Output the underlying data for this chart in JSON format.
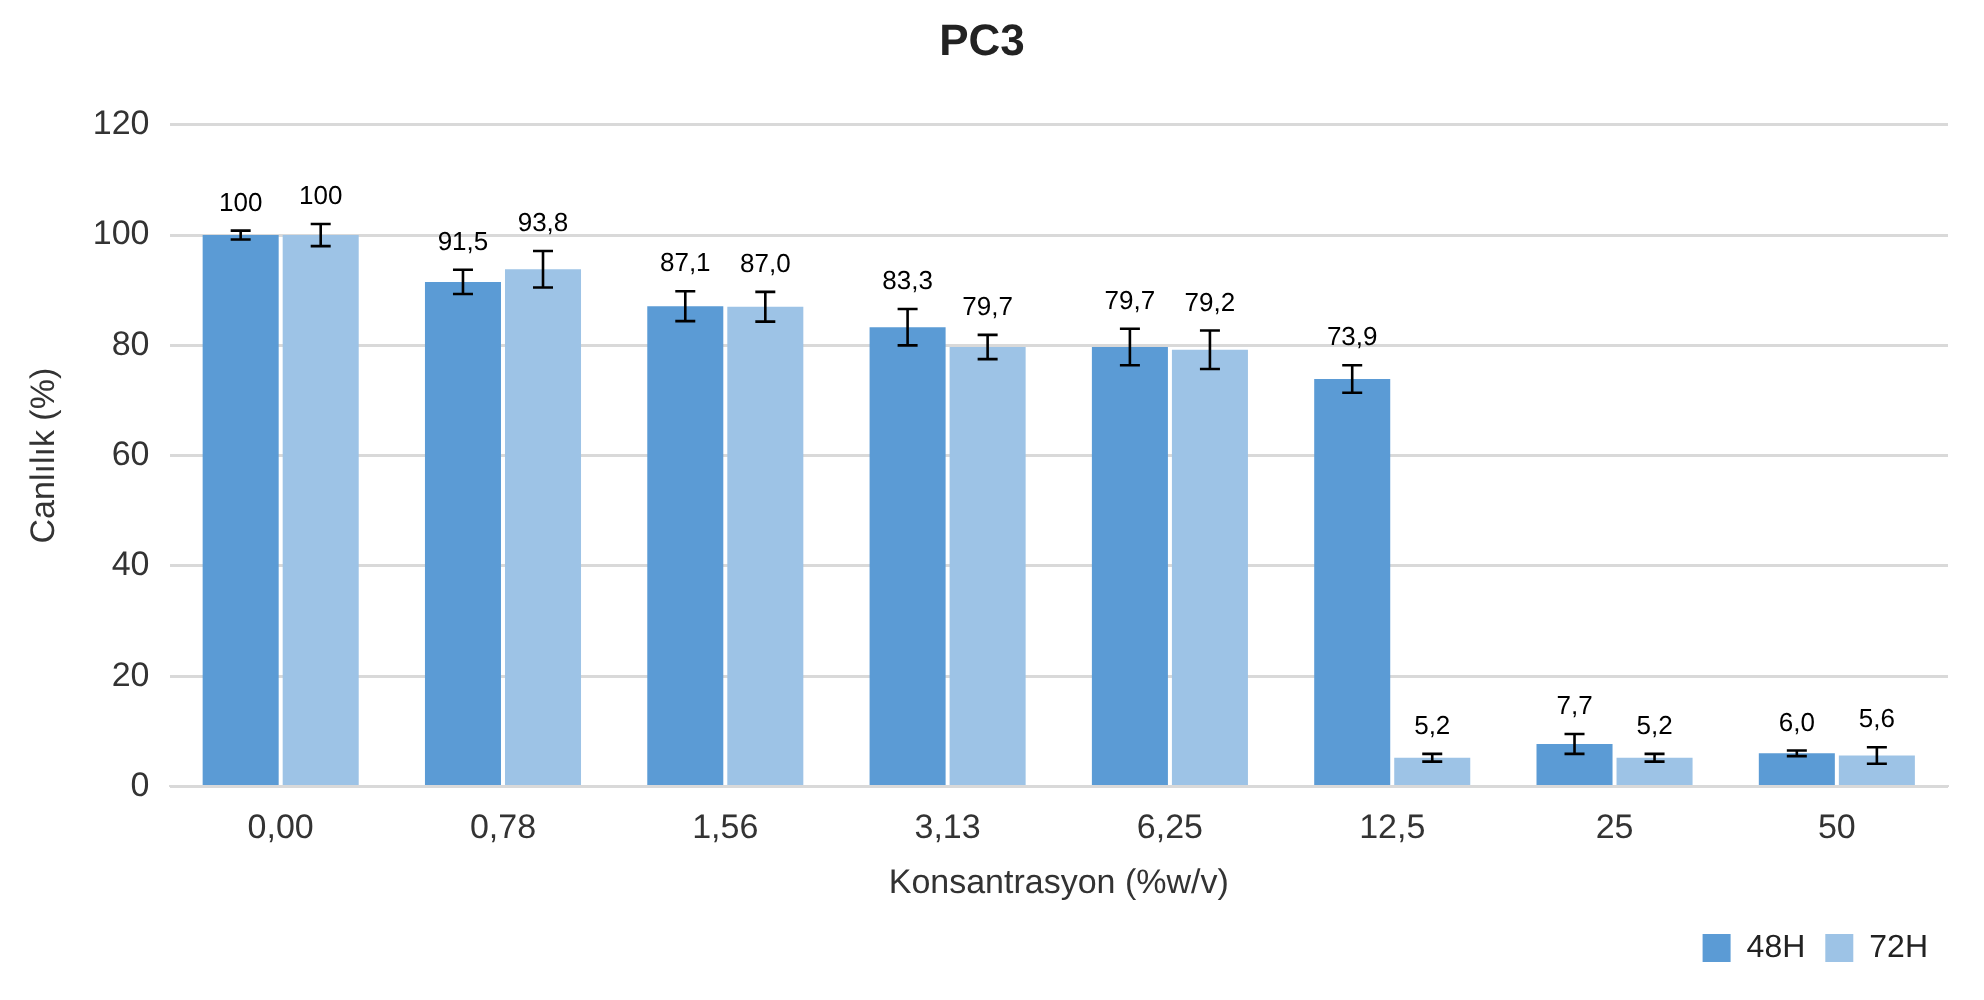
{
  "chart_data": {
    "type": "bar",
    "title": "PC3",
    "xlabel": "Konsantrasyon (%w/v)",
    "ylabel": "Canlılık (%)",
    "categories": [
      "0,00",
      "0,78",
      "1,56",
      "3,13",
      "6,25",
      "12,5",
      "25",
      "50"
    ],
    "series": [
      {
        "name": "48H",
        "color": "#5b9bd5",
        "values": [
          100,
          91.5,
          87.1,
          83.3,
          79.7,
          73.9,
          7.7,
          6.0
        ],
        "errors": [
          0.8,
          2.2,
          2.7,
          3.3,
          3.3,
          2.5,
          1.8,
          0.5
        ],
        "value_labels": [
          "100",
          "91,5",
          "87,1",
          "83,3",
          "79,7",
          "73,9",
          "7,7",
          "6,0"
        ]
      },
      {
        "name": "72H",
        "color": "#9dc3e6",
        "values": [
          100,
          93.8,
          87.0,
          79.7,
          79.2,
          5.2,
          5.2,
          5.6
        ],
        "errors": [
          2,
          3.3,
          2.7,
          2.2,
          3.5,
          0.7,
          0.7,
          1.5
        ],
        "value_labels": [
          "100",
          "93,8",
          "87,0",
          "79,7",
          "79,2",
          "5,2",
          "5,2",
          "5,6"
        ]
      }
    ],
    "ylim": [
      0,
      120
    ],
    "yticks": [
      0,
      20,
      40,
      60,
      80,
      100,
      120
    ],
    "grid": "y",
    "legend": "bottom right"
  }
}
